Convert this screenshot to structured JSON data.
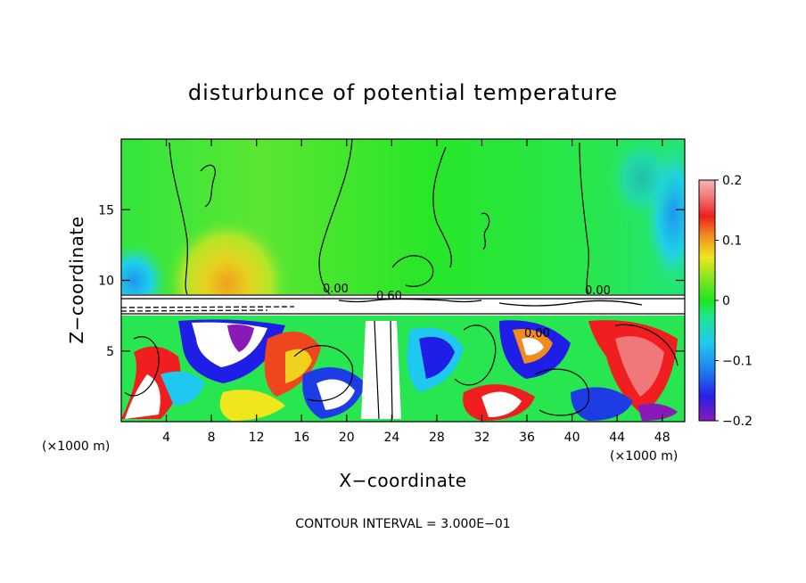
{
  "chart_data": {
    "type": "heatmap",
    "title": "disturbunce of potential temperature",
    "xlabel": "X−coordinate",
    "ylabel": "Z−coordinate",
    "x_unit": "(×1000 m)",
    "x_unit_right": "(×1000 m)",
    "xlim": [
      0,
      50
    ],
    "ylim": [
      0,
      20
    ],
    "x_ticks": [
      4,
      8,
      12,
      16,
      20,
      24,
      28,
      32,
      36,
      40,
      44,
      48
    ],
    "x_tick_labels": [
      "4",
      "8",
      "12",
      "16",
      "20",
      "24",
      "28",
      "32",
      "36",
      "40",
      "44",
      "48"
    ],
    "y_ticks": [
      5,
      10,
      15
    ],
    "y_tick_labels": [
      "5",
      "10",
      "15"
    ],
    "colorbar": {
      "min": -0.2,
      "max": 0.2,
      "ticks": [
        0.2,
        0.1,
        0,
        -0.1,
        -0.2
      ],
      "tick_labels": [
        "0.2",
        "0.1",
        "0",
        "−0.1",
        "−0.2"
      ],
      "colors": [
        "#8a1ab8",
        "#5a10c8",
        "#1e1ee6",
        "#1e5ae6",
        "#1e96f0",
        "#1ec8f0",
        "#1ee6c8",
        "#1ee68c",
        "#1ee650",
        "#32e61e",
        "#8ce61e",
        "#c8e61e",
        "#f0e61e",
        "#f0b41e",
        "#f0821e",
        "#f0461e",
        "#f01e1e",
        "#dc1e32",
        "#f07878",
        "#f5b4b4"
      ]
    },
    "contour_labels": [
      "0.00",
      "0.60",
      "0.00",
      "0.00"
    ],
    "contour_interval": 0.3,
    "annotation": "CONTOUR INTERVAL = 3.000E−01"
  }
}
